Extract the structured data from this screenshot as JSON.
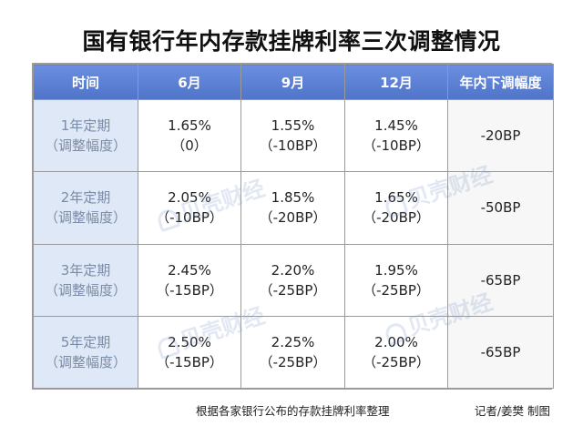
{
  "title": "国有银行年内存款挂牌利率三次调整情况",
  "table": {
    "headers": [
      "时间",
      "6月",
      "9月",
      "12月",
      "年内下调幅度"
    ],
    "rows": [
      {
        "term": "1年定期",
        "term_sub": "（调整幅度）",
        "cells": [
          {
            "rate": "1.65%",
            "change": "（0）"
          },
          {
            "rate": "1.55%",
            "change": "（-10BP）"
          },
          {
            "rate": "1.45%",
            "change": "（-10BP）"
          }
        ],
        "total": "-20BP"
      },
      {
        "term": "2年定期",
        "term_sub": "（调整幅度）",
        "cells": [
          {
            "rate": "2.05%",
            "change": "（-10BP）"
          },
          {
            "rate": "1.85%",
            "change": "（-20BP）"
          },
          {
            "rate": "1.65%",
            "change": "（-20BP）"
          }
        ],
        "total": "-50BP"
      },
      {
        "term": "3年定期",
        "term_sub": "（调整幅度）",
        "cells": [
          {
            "rate": "2.45%",
            "change": "（-15BP）"
          },
          {
            "rate": "2.20%",
            "change": "（-25BP）"
          },
          {
            "rate": "1.95%",
            "change": "（-25BP）"
          }
        ],
        "total": "-65BP"
      },
      {
        "term": "5年定期",
        "term_sub": "（调整幅度）",
        "cells": [
          {
            "rate": "2.50%",
            "change": "（-15BP）"
          },
          {
            "rate": "2.25%",
            "change": "（-25BP）"
          },
          {
            "rate": "2.00%",
            "change": "（-25BP）"
          }
        ],
        "total": "-65BP"
      }
    ]
  },
  "footnote": "根据各家银行公布的存款挂牌利率整理",
  "credit": "记者/姜樊 制图",
  "watermark": "贝壳财经",
  "colors": {
    "header_bg": "#5a7fd0",
    "term_bg": "#dfe8f7",
    "term_text": "#7b8ca8"
  }
}
